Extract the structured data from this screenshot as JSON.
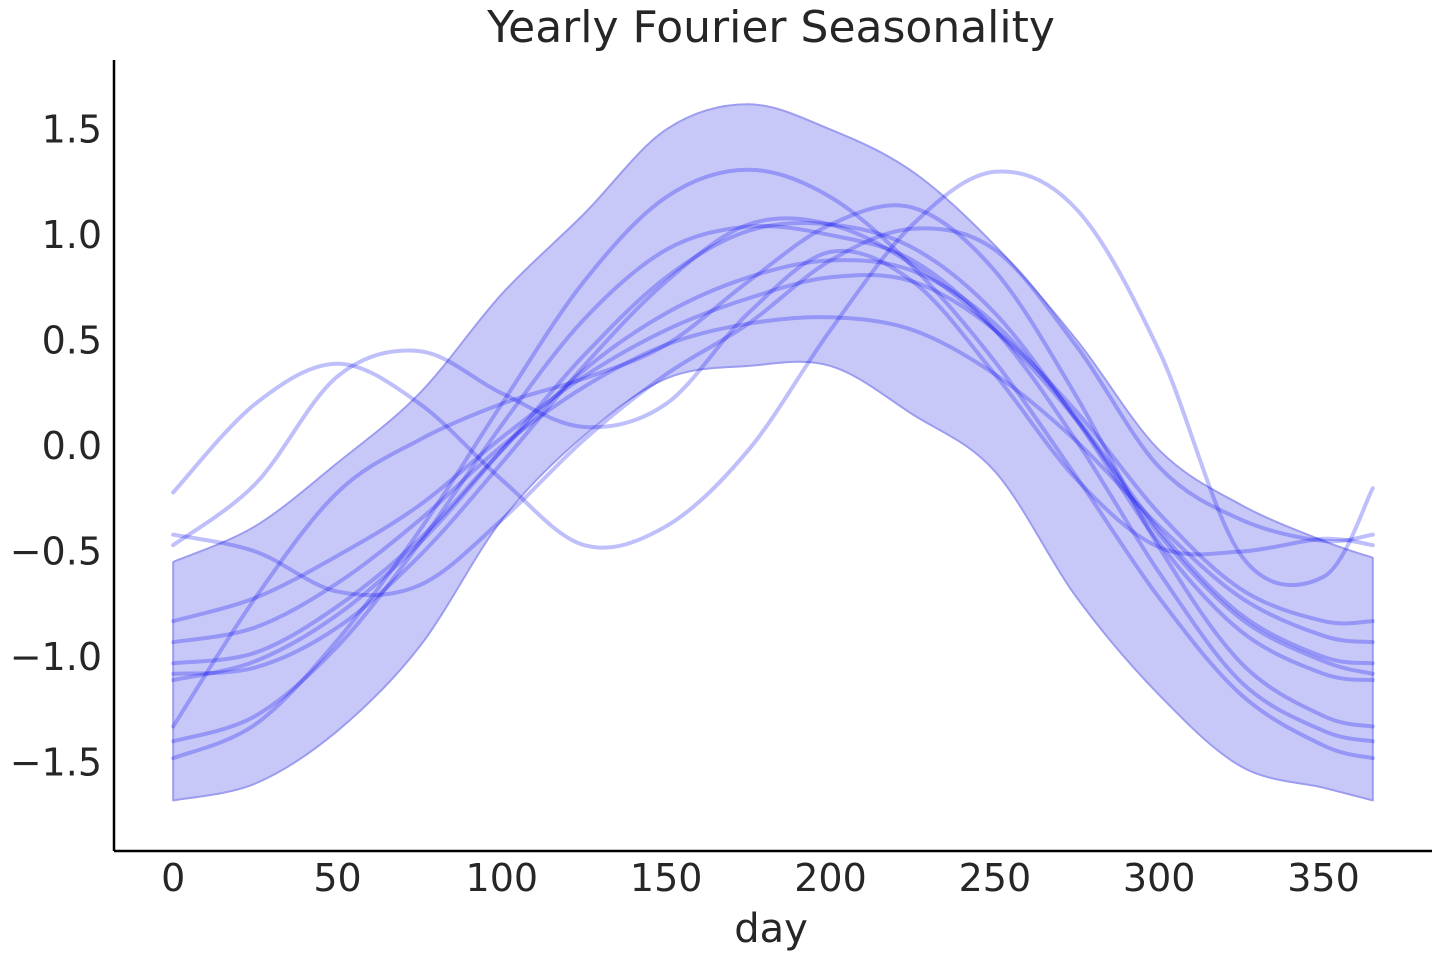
{
  "chart_data": {
    "type": "line",
    "title": "Yearly Fourier Seasonality",
    "xlabel": "day",
    "ylabel": "",
    "xlim": [
      -18,
      383
    ],
    "ylim": [
      -1.92,
      1.83
    ],
    "xticks": [
      0,
      50,
      100,
      150,
      200,
      250,
      300,
      350
    ],
    "xtick_labels": [
      "0",
      "50",
      "100",
      "150",
      "200",
      "250",
      "300",
      "350"
    ],
    "yticks": [
      1.5,
      1.0,
      0.5,
      0.0,
      -0.5,
      -1.0,
      -1.5
    ],
    "ytick_labels": [
      "1.5",
      "1.0",
      "0.5",
      "0.0",
      "−0.5",
      "−1.0",
      "−1.5"
    ],
    "grid": false,
    "legend": "none",
    "colors": {
      "series": "#0000ee",
      "band": "#c8c8f8",
      "band_edge": "#9c9cf0"
    },
    "x": [
      0,
      25,
      50,
      75,
      100,
      125,
      150,
      175,
      200,
      225,
      250,
      275,
      300,
      325,
      350,
      365
    ],
    "band": {
      "upper": [
        -0.55,
        -0.38,
        -0.08,
        0.25,
        0.72,
        1.1,
        1.5,
        1.62,
        1.5,
        1.3,
        0.95,
        0.5,
        -0.02,
        -0.28,
        -0.45,
        -0.53
      ],
      "lower": [
        -1.68,
        -1.6,
        -1.35,
        -0.95,
        -0.35,
        0.05,
        0.32,
        0.38,
        0.38,
        0.15,
        -0.12,
        -0.72,
        -1.18,
        -1.52,
        -1.62,
        -1.68
      ]
    },
    "series": [
      {
        "values": [
          -0.22,
          0.2,
          0.39,
          0.2,
          -0.16,
          -0.47,
          -0.38,
          -0.02,
          0.55,
          1.05,
          1.3,
          1.12,
          0.45,
          -0.52,
          -0.62,
          -0.2
        ]
      },
      {
        "values": [
          -0.42,
          -0.5,
          -0.69,
          -0.66,
          -0.35,
          0.03,
          0.34,
          0.58,
          0.88,
          1.03,
          0.93,
          0.47,
          -0.1,
          -0.35,
          -0.45,
          -0.42
        ]
      },
      {
        "values": [
          -0.47,
          -0.18,
          0.33,
          0.45,
          0.25,
          0.09,
          0.2,
          0.63,
          0.92,
          0.78,
          0.34,
          -0.16,
          -0.48,
          -0.5,
          -0.44,
          -0.47
        ]
      },
      {
        "values": [
          -1.33,
          -0.72,
          -0.22,
          0.03,
          0.2,
          0.32,
          0.48,
          0.78,
          1.05,
          1.13,
          0.83,
          0.23,
          -0.48,
          -1.03,
          -1.28,
          -1.33
        ]
      },
      {
        "values": [
          -0.83,
          -0.72,
          -0.52,
          -0.28,
          0.04,
          0.33,
          0.55,
          0.7,
          0.8,
          0.78,
          0.55,
          0.16,
          -0.32,
          -0.68,
          -0.83,
          -0.83
        ]
      },
      {
        "values": [
          -0.93,
          -0.86,
          -0.65,
          -0.35,
          0.0,
          0.28,
          0.48,
          0.58,
          0.61,
          0.55,
          0.34,
          0.02,
          -0.38,
          -0.72,
          -0.9,
          -0.93
        ]
      },
      {
        "values": [
          -1.03,
          -0.98,
          -0.76,
          -0.44,
          -0.02,
          0.36,
          0.63,
          0.8,
          0.88,
          0.83,
          0.58,
          0.13,
          -0.4,
          -0.8,
          -1.0,
          -1.03
        ]
      },
      {
        "values": [
          -1.11,
          -1.02,
          -0.8,
          -0.46,
          -0.02,
          0.43,
          0.8,
          1.02,
          1.05,
          0.94,
          0.63,
          0.12,
          -0.46,
          -0.88,
          -1.08,
          -1.11
        ]
      },
      {
        "values": [
          -1.4,
          -1.28,
          -0.95,
          -0.46,
          0.1,
          0.6,
          0.93,
          1.04,
          1.0,
          0.88,
          0.55,
          0.02,
          -0.6,
          -1.12,
          -1.35,
          -1.4
        ]
      },
      {
        "values": [
          -1.48,
          -1.32,
          -0.92,
          -0.4,
          0.2,
          0.78,
          1.18,
          1.31,
          1.18,
          0.85,
          0.4,
          -0.15,
          -0.72,
          -1.18,
          -1.42,
          -1.48
        ]
      },
      {
        "values": [
          -1.08,
          -1.05,
          -0.86,
          -0.52,
          -0.08,
          0.38,
          0.78,
          1.05,
          1.05,
          0.86,
          0.55,
          0.12,
          -0.42,
          -0.82,
          -1.02,
          -1.08
        ]
      }
    ]
  }
}
